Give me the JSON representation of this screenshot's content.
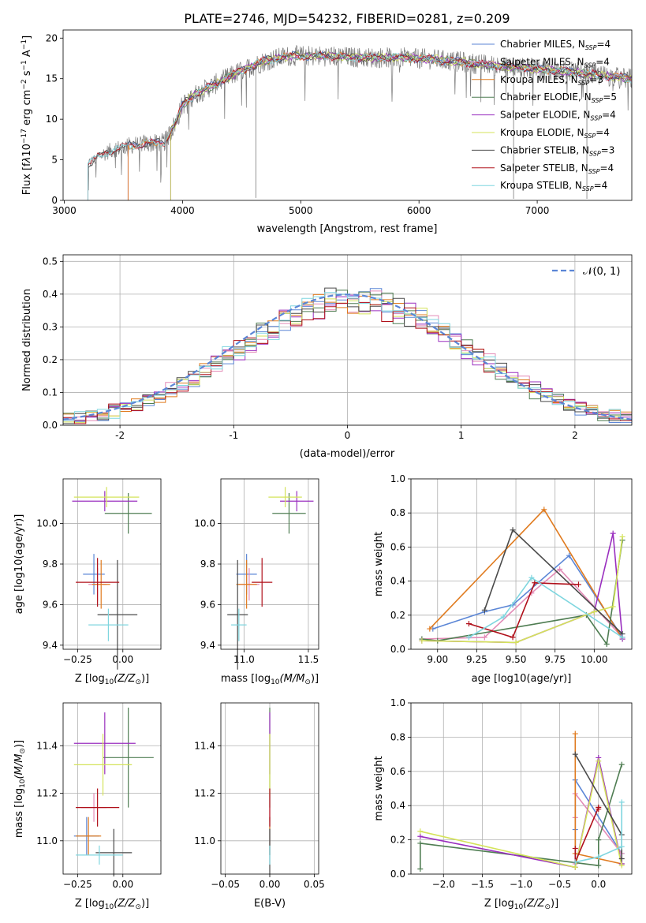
{
  "figure_title": "PLATE=2746, MJD=54232, FIBERID=0281, z=0.209",
  "colors": {
    "Chabrier MILES": "#5b86d6",
    "Salpeter MILES": "#e38bb7",
    "Kroupa MILES": "#e07b1f",
    "Chabrier ELODIE": "#4f7d52",
    "Salpeter ELODIE": "#9a2fbf",
    "Kroupa ELODIE": "#d4e35a",
    "Chabrier STELIB": "#4a4a4a",
    "Salpeter STELIB": "#b0101a",
    "Kroupa STELIB": "#7fd6df"
  },
  "chart_data": [
    {
      "id": "spectrum",
      "type": "line",
      "xlabel": "wavelength [Angstrom, rest frame]",
      "ylabel_main": "Flux [f",
      "ylabel_tail": "10",
      "ylabel_exp": "−17",
      "ylabel_units": " erg cm",
      "ylabel_u2": "−2",
      "ylabel_s": " s",
      "ylabel_s2": "−1",
      "ylabel_A": " A",
      "ylabel_A2": "−1",
      "ylabel_end": "]",
      "xlim": [
        2990,
        7800
      ],
      "ylim": [
        0,
        21
      ],
      "xticks": [
        3000,
        4000,
        5000,
        6000,
        7000
      ],
      "yticks": [
        0,
        5,
        10,
        15,
        20
      ],
      "legend_position": "right",
      "legend": [
        {
          "name": "Chabrier MILES, N",
          "sub": "SSP",
          "tail": "=4"
        },
        {
          "name": "Salpeter MILES, N",
          "sub": "SSP",
          "tail": "=4"
        },
        {
          "name": "Kroupa MILES, N",
          "sub": "SSP",
          "tail": "=3"
        },
        {
          "name": "Chabrier ELODIE, N",
          "sub": "SSP",
          "tail": "=5"
        },
        {
          "name": "Salpeter ELODIE, N",
          "sub": "SSP",
          "tail": "=4"
        },
        {
          "name": "Kroupa ELODIE, N",
          "sub": "SSP",
          "tail": "=4"
        },
        {
          "name": "Chabrier STELIB, N",
          "sub": "SSP",
          "tail": "=3"
        },
        {
          "name": "Salpeter STELIB, N",
          "sub": "SSP",
          "tail": "=4"
        },
        {
          "name": "Kroupa STELIB, N",
          "sub": "SSP",
          "tail": "=4"
        }
      ],
      "model_start": {
        "Chabrier MILES": 3540,
        "Salpeter MILES": 3540,
        "Kroupa MILES": 3540,
        "Chabrier ELODIE": 3900,
        "Salpeter ELODIE": 3900,
        "Kroupa ELODIE": 3900,
        "Chabrier STELIB": 3200,
        "Salpeter STELIB": 3200,
        "Kroupa STELIB": 3200
      },
      "continuum": {
        "x": [
          3200,
          3300,
          3400,
          3500,
          3650,
          3750,
          3850,
          3950,
          4000,
          4100,
          4300,
          4500,
          4700,
          4900,
          5200,
          5500,
          5800,
          6100,
          6400,
          6700,
          7000,
          7300,
          7600,
          7800
        ],
        "y": [
          4.4,
          5.5,
          6.2,
          6.6,
          7.0,
          7.0,
          7.2,
          9.8,
          11.8,
          13.0,
          14.5,
          16.0,
          17.2,
          17.8,
          17.8,
          17.6,
          17.6,
          17.4,
          17.0,
          16.5,
          16.2,
          15.8,
          15.3,
          15.0
        ]
      },
      "spikes": [
        {
          "x": 4620,
          "y": 0.3
        },
        {
          "x": 6800,
          "y": 0.2
        },
        {
          "x": 7420,
          "y": 0.2
        }
      ]
    },
    {
      "id": "residuals",
      "type": "area",
      "xlabel": "(data-model)/error",
      "ylabel": "Normed distribution",
      "xlim": [
        -2.5,
        2.5
      ],
      "ylim": [
        0,
        0.52
      ],
      "xticks": [
        -2,
        -1,
        0,
        1,
        2
      ],
      "ytick_labels": [
        "0.0",
        "0.1",
        "0.2",
        "0.3",
        "0.4",
        "0.5"
      ],
      "yticks": [
        0,
        0.1,
        0.2,
        0.3,
        0.4,
        0.5
      ],
      "grid": true,
      "legend": "𝒩(0, 1)",
      "legend_position": "top-right",
      "bin_width": 0.1
    },
    {
      "id": "age-vs-Z",
      "type": "scatter",
      "xlabel_main": "Z [log",
      "xlabel_sub": "10",
      "xlabel_mid": "(Z/Z",
      "xlabel_sym": "⊙",
      "xlabel_end": ")]",
      "ylabel": "age  [log10(age/yr)]",
      "xlim": [
        -0.33,
        0.21
      ],
      "ylim": [
        9.38,
        10.22
      ],
      "xticks": [
        -0.25,
        0.0
      ],
      "xtick_labels": [
        "−0.25",
        "0.00"
      ],
      "yticks": [
        9.4,
        9.6,
        9.8,
        10.0
      ],
      "ytick_labels": [
        "9.4",
        "9.6",
        "9.8",
        "10.0"
      ],
      "grid": true,
      "points": [
        {
          "model": "Chabrier MILES",
          "x": -0.16,
          "xerr": 0.06,
          "y": 9.75,
          "yerr": 0.1
        },
        {
          "model": "Salpeter MILES",
          "x": -0.14,
          "xerr": 0.05,
          "y": 9.7,
          "yerr": 0.08
        },
        {
          "model": "Kroupa MILES",
          "x": -0.12,
          "xerr": 0.05,
          "y": 9.7,
          "yerr": 0.12
        },
        {
          "model": "Chabrier ELODIE",
          "x": 0.03,
          "xerr": 0.13,
          "y": 10.05,
          "yerr": 0.1
        },
        {
          "model": "Salpeter ELODIE",
          "x": -0.1,
          "xerr": 0.18,
          "y": 10.11,
          "yerr": 0.05
        },
        {
          "model": "Kroupa ELODIE",
          "x": -0.09,
          "xerr": 0.18,
          "y": 10.13,
          "yerr": 0.05
        },
        {
          "model": "Chabrier STELIB",
          "x": -0.03,
          "xerr": 0.11,
          "y": 9.55,
          "yerr": 0.27
        },
        {
          "model": "Salpeter STELIB",
          "x": -0.14,
          "xerr": 0.12,
          "y": 9.71,
          "yerr": 0.12
        },
        {
          "model": "Kroupa STELIB",
          "x": -0.08,
          "xerr": 0.11,
          "y": 9.5,
          "yerr": 0.08
        }
      ]
    },
    {
      "id": "age-vs-mass",
      "type": "scatter",
      "xlabel_main": "mass [log",
      "xlabel_sub": "10",
      "xlabel_mid": "(M/M",
      "xlabel_sym": "⊙",
      "xlabel_end": ")]",
      "xlim": [
        10.82,
        11.58
      ],
      "ylim": [
        9.38,
        10.22
      ],
      "xticks": [
        11.0,
        11.5
      ],
      "xtick_labels": [
        "11.0",
        "11.5"
      ],
      "yticks": [
        9.4,
        9.6,
        9.8,
        10.0
      ],
      "ytick_labels": [
        "9.4",
        "9.6",
        "9.8",
        "10.0"
      ],
      "grid": true,
      "points": [
        {
          "model": "Chabrier MILES",
          "x": 11.02,
          "xerr": 0.08,
          "y": 9.75,
          "yerr": 0.1
        },
        {
          "model": "Salpeter MILES",
          "x": 11.04,
          "xerr": 0.08,
          "y": 9.7,
          "yerr": 0.08
        },
        {
          "model": "Kroupa MILES",
          "x": 11.02,
          "xerr": 0.08,
          "y": 9.7,
          "yerr": 0.12
        },
        {
          "model": "Chabrier ELODIE",
          "x": 11.35,
          "xerr": 0.13,
          "y": 10.05,
          "yerr": 0.1
        },
        {
          "model": "Salpeter ELODIE",
          "x": 11.41,
          "xerr": 0.13,
          "y": 10.11,
          "yerr": 0.05
        },
        {
          "model": "Kroupa ELODIE",
          "x": 11.32,
          "xerr": 0.13,
          "y": 10.13,
          "yerr": 0.05
        },
        {
          "model": "Chabrier STELIB",
          "x": 10.95,
          "xerr": 0.08,
          "y": 9.55,
          "yerr": 0.27
        },
        {
          "model": "Salpeter STELIB",
          "x": 11.14,
          "xerr": 0.08,
          "y": 9.71,
          "yerr": 0.12
        },
        {
          "model": "Kroupa STELIB",
          "x": 10.96,
          "xerr": 0.06,
          "y": 9.5,
          "yerr": 0.08
        }
      ]
    },
    {
      "id": "weight-vs-age",
      "type": "line",
      "xlabel": "age  [log10(age/yr)]",
      "ylabel": "mass weight",
      "xlim": [
        8.83,
        10.24
      ],
      "ylim": [
        0,
        1
      ],
      "xticks": [
        9.0,
        9.25,
        9.5,
        9.75,
        10.0
      ],
      "xtick_labels": [
        "9.00",
        "9.25",
        "9.50",
        "9.75",
        "10.00"
      ],
      "yticks": [
        0,
        0.2,
        0.4,
        0.6,
        0.8,
        1.0
      ],
      "ytick_labels": [
        "0.0",
        "0.2",
        "0.4",
        "0.6",
        "0.8",
        "1.0"
      ],
      "grid": true,
      "series": [
        {
          "model": "Chabrier MILES",
          "x": [
            8.97,
            9.3,
            9.48,
            9.84,
            10.18
          ],
          "y": [
            0.12,
            0.22,
            0.26,
            0.55,
            0.07
          ]
        },
        {
          "model": "Salpeter MILES",
          "x": [
            8.9,
            9.3,
            9.6,
            9.78,
            10.18
          ],
          "y": [
            0.06,
            0.07,
            0.33,
            0.47,
            0.07
          ]
        },
        {
          "model": "Kroupa MILES",
          "x": [
            8.95,
            9.68,
            10.18
          ],
          "y": [
            0.12,
            0.82,
            0.06
          ]
        },
        {
          "model": "Chabrier ELODIE",
          "x": [
            8.9,
            9.0,
            9.95,
            10.08,
            10.18
          ],
          "y": [
            0.06,
            0.05,
            0.2,
            0.03,
            0.64
          ]
        },
        {
          "model": "Salpeter ELODIE",
          "x": [
            8.9,
            9.5,
            10.0,
            10.12,
            10.18
          ],
          "y": [
            0.05,
            0.04,
            0.22,
            0.68,
            0.06
          ]
        },
        {
          "model": "Kroupa ELODIE",
          "x": [
            8.9,
            9.5,
            10.0,
            10.12,
            10.18
          ],
          "y": [
            0.05,
            0.04,
            0.22,
            0.25,
            0.66
          ]
        },
        {
          "model": "Chabrier STELIB",
          "x": [
            9.3,
            9.48,
            10.18
          ],
          "y": [
            0.23,
            0.7,
            0.09
          ]
        },
        {
          "model": "Salpeter STELIB",
          "x": [
            9.2,
            9.48,
            9.62,
            9.9
          ],
          "y": [
            0.15,
            0.07,
            0.39,
            0.38
          ]
        },
        {
          "model": "Kroupa STELIB",
          "x": [
            9.2,
            9.42,
            9.6,
            10.18
          ],
          "y": [
            0.07,
            0.19,
            0.42,
            0.07
          ]
        }
      ]
    },
    {
      "id": "mass-vs-Z",
      "type": "scatter",
      "xlabel_main": "Z [log",
      "xlabel_sub": "10",
      "xlabel_mid": "(Z/Z",
      "xlabel_sym": "⊙",
      "xlabel_end": ")]",
      "xlim": [
        -0.33,
        0.21
      ],
      "ylim": [
        10.86,
        11.58
      ],
      "xticks": [
        -0.25,
        0.0
      ],
      "xtick_labels": [
        "−0.25",
        "0.00"
      ],
      "yticks": [
        11.0,
        11.2,
        11.4
      ],
      "ytick_labels": [
        "11.0",
        "11.2",
        "11.4"
      ],
      "grid": true,
      "points": [
        {
          "model": "Chabrier MILES",
          "x": -0.2,
          "xerr": 0.07,
          "y": 11.02,
          "yerr": 0.08
        },
        {
          "model": "Salpeter MILES",
          "x": -0.16,
          "xerr": 0.07,
          "y": 11.14,
          "yerr": 0.06
        },
        {
          "model": "Kroupa MILES",
          "x": -0.19,
          "xerr": 0.07,
          "y": 11.02,
          "yerr": 0.08
        },
        {
          "model": "Chabrier ELODIE",
          "x": 0.03,
          "xerr": 0.14,
          "y": 11.35,
          "yerr": 0.21
        },
        {
          "model": "Salpeter ELODIE",
          "x": -0.1,
          "xerr": 0.17,
          "y": 11.41,
          "yerr": 0.13
        },
        {
          "model": "Kroupa ELODIE",
          "x": -0.11,
          "xerr": 0.16,
          "y": 11.32,
          "yerr": 0.13
        },
        {
          "model": "Chabrier STELIB",
          "x": -0.05,
          "xerr": 0.1,
          "y": 10.95,
          "yerr": 0.1
        },
        {
          "model": "Salpeter STELIB",
          "x": -0.14,
          "xerr": 0.12,
          "y": 11.14,
          "yerr": 0.08
        },
        {
          "model": "Kroupa STELIB",
          "x": -0.13,
          "xerr": 0.13,
          "y": 10.94,
          "yerr": 0.04
        }
      ]
    },
    {
      "id": "mass-vs-EBV",
      "type": "scatter",
      "xlabel": "E(B-V)",
      "xlim": [
        -0.055,
        0.055
      ],
      "ylim": [
        10.86,
        11.58
      ],
      "xticks": [
        -0.05,
        0.0,
        0.05
      ],
      "xtick_labels": [
        "−0.05",
        "0.00",
        "0.05"
      ],
      "yticks": [
        11.0,
        11.2,
        11.4
      ],
      "ytick_labels": [
        "11.0",
        "11.2",
        "11.4"
      ],
      "grid": true,
      "points": [
        {
          "model": "Chabrier MILES",
          "x": 0,
          "y": 11.02,
          "yerr": 0.08
        },
        {
          "model": "Salpeter MILES",
          "x": 0,
          "y": 11.14,
          "yerr": 0.06
        },
        {
          "model": "Kroupa MILES",
          "x": 0,
          "y": 11.02,
          "yerr": 0.08
        },
        {
          "model": "Chabrier ELODIE",
          "x": 0,
          "y": 11.35,
          "yerr": 0.21
        },
        {
          "model": "Salpeter ELODIE",
          "x": 0,
          "y": 11.41,
          "yerr": 0.13
        },
        {
          "model": "Kroupa ELODIE",
          "x": 0,
          "y": 11.32,
          "yerr": 0.13
        },
        {
          "model": "Chabrier STELIB",
          "x": 0,
          "y": 10.95,
          "yerr": 0.1
        },
        {
          "model": "Salpeter STELIB",
          "x": 0,
          "y": 11.14,
          "yerr": 0.08
        },
        {
          "model": "Kroupa STELIB",
          "x": 0,
          "y": 10.94,
          "yerr": 0.04
        }
      ]
    },
    {
      "id": "weight-vs-Z",
      "type": "line",
      "xlabel_main": "Z [log",
      "xlabel_sub": "10",
      "xlabel_mid": "(Z/Z",
      "xlabel_sym": "⊙",
      "xlabel_end": ")]",
      "ylabel": "mass weight",
      "xlim": [
        -2.42,
        0.43
      ],
      "ylim": [
        0,
        1
      ],
      "xticks": [
        -2.0,
        -1.5,
        -1.0,
        -0.5,
        0.0
      ],
      "xtick_labels": [
        "−2.0",
        "−1.5",
        "−1.0",
        "−0.5",
        "0.0"
      ],
      "yticks": [
        0,
        0.2,
        0.4,
        0.6,
        0.8,
        1.0
      ],
      "ytick_labels": [
        "0.0",
        "0.2",
        "0.4",
        "0.6",
        "0.8",
        "1.0"
      ],
      "grid": true,
      "series": [
        {
          "model": "Chabrier MILES",
          "x": [
            -0.3,
            -0.3,
            -0.3,
            0.3
          ],
          "y": [
            0.07,
            0.26,
            0.55,
            0.12
          ]
        },
        {
          "model": "Salpeter MILES",
          "x": [
            -0.3,
            -0.3,
            -0.3,
            0.3
          ],
          "y": [
            0.06,
            0.33,
            0.47,
            0.12
          ]
        },
        {
          "model": "Kroupa MILES",
          "x": [
            -0.3,
            -0.3,
            0.3
          ],
          "y": [
            0.82,
            0.12,
            0.06
          ]
        },
        {
          "model": "Chabrier ELODIE",
          "x": [
            -2.3,
            -2.3,
            0.0,
            0.0,
            0.3
          ],
          "y": [
            0.03,
            0.18,
            0.05,
            0.2,
            0.64
          ]
        },
        {
          "model": "Salpeter ELODIE",
          "x": [
            -2.3,
            -0.3,
            0.0,
            0.3
          ],
          "y": [
            0.22,
            0.04,
            0.68,
            0.06
          ]
        },
        {
          "model": "Kroupa ELODIE",
          "x": [
            -2.3,
            -0.3,
            0.0,
            0.3
          ],
          "y": [
            0.25,
            0.04,
            0.66,
            0.05
          ]
        },
        {
          "model": "Chabrier STELIB",
          "x": [
            -0.3,
            0.3,
            0.3
          ],
          "y": [
            0.7,
            0.23,
            0.09
          ]
        },
        {
          "model": "Salpeter STELIB",
          "x": [
            -0.3,
            -0.3,
            0.0,
            0.0
          ],
          "y": [
            0.15,
            0.07,
            0.39,
            0.38
          ]
        },
        {
          "model": "Kroupa STELIB",
          "x": [
            -0.3,
            0.0,
            0.3,
            0.3
          ],
          "y": [
            0.07,
            0.1,
            0.16,
            0.42
          ]
        }
      ]
    }
  ]
}
